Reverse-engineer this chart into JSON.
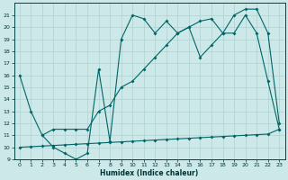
{
  "xlabel": "Humidex (Indice chaleur)",
  "bg_color": "#cde8e8",
  "line_color": "#006666",
  "grid_color": "#b0d0d0",
  "xlim": [
    -0.5,
    23.5
  ],
  "ylim": [
    9,
    22
  ],
  "xticks": [
    0,
    1,
    2,
    3,
    4,
    5,
    6,
    7,
    8,
    9,
    10,
    11,
    12,
    13,
    14,
    15,
    16,
    17,
    18,
    19,
    20,
    21,
    22,
    23
  ],
  "yticks": [
    9,
    10,
    11,
    12,
    13,
    14,
    15,
    16,
    17,
    18,
    19,
    20,
    21
  ],
  "line1_x": [
    0,
    1,
    2,
    3,
    4,
    5,
    6,
    7,
    8,
    9,
    10,
    11,
    12,
    13,
    14,
    15,
    16,
    17,
    18,
    19,
    20,
    21,
    22,
    23
  ],
  "line1_y": [
    16,
    13,
    11,
    10,
    9.5,
    9,
    9.5,
    16.5,
    10.5,
    19,
    21,
    20.7,
    19.5,
    20.5,
    19.5,
    20,
    17.5,
    18.5,
    19.5,
    19.5,
    21,
    19.5,
    15.5,
    11.5
  ],
  "line2_x": [
    0,
    1,
    2,
    3,
    4,
    5,
    6,
    7,
    8,
    9,
    10,
    11,
    12,
    13,
    14,
    15,
    16,
    17,
    18,
    19,
    20,
    21,
    22,
    23
  ],
  "line2_y": [
    10.0,
    10.05,
    10.1,
    10.15,
    10.2,
    10.25,
    10.3,
    10.35,
    10.4,
    10.45,
    10.5,
    10.55,
    10.6,
    10.65,
    10.7,
    10.75,
    10.8,
    10.85,
    10.9,
    10.95,
    11.0,
    11.05,
    11.1,
    11.5
  ],
  "line3_x": [
    2,
    3,
    4,
    5,
    6,
    7,
    8,
    9,
    10,
    11,
    12,
    13,
    14,
    15,
    16,
    17,
    18,
    19,
    20,
    21,
    22,
    23
  ],
  "line3_y": [
    11,
    11.5,
    11.5,
    11.5,
    11.5,
    13,
    13.5,
    15,
    15.5,
    16.5,
    17.5,
    18.5,
    19.5,
    20,
    20.5,
    20.7,
    19.5,
    21,
    21.5,
    21.5,
    19.5,
    12
  ]
}
